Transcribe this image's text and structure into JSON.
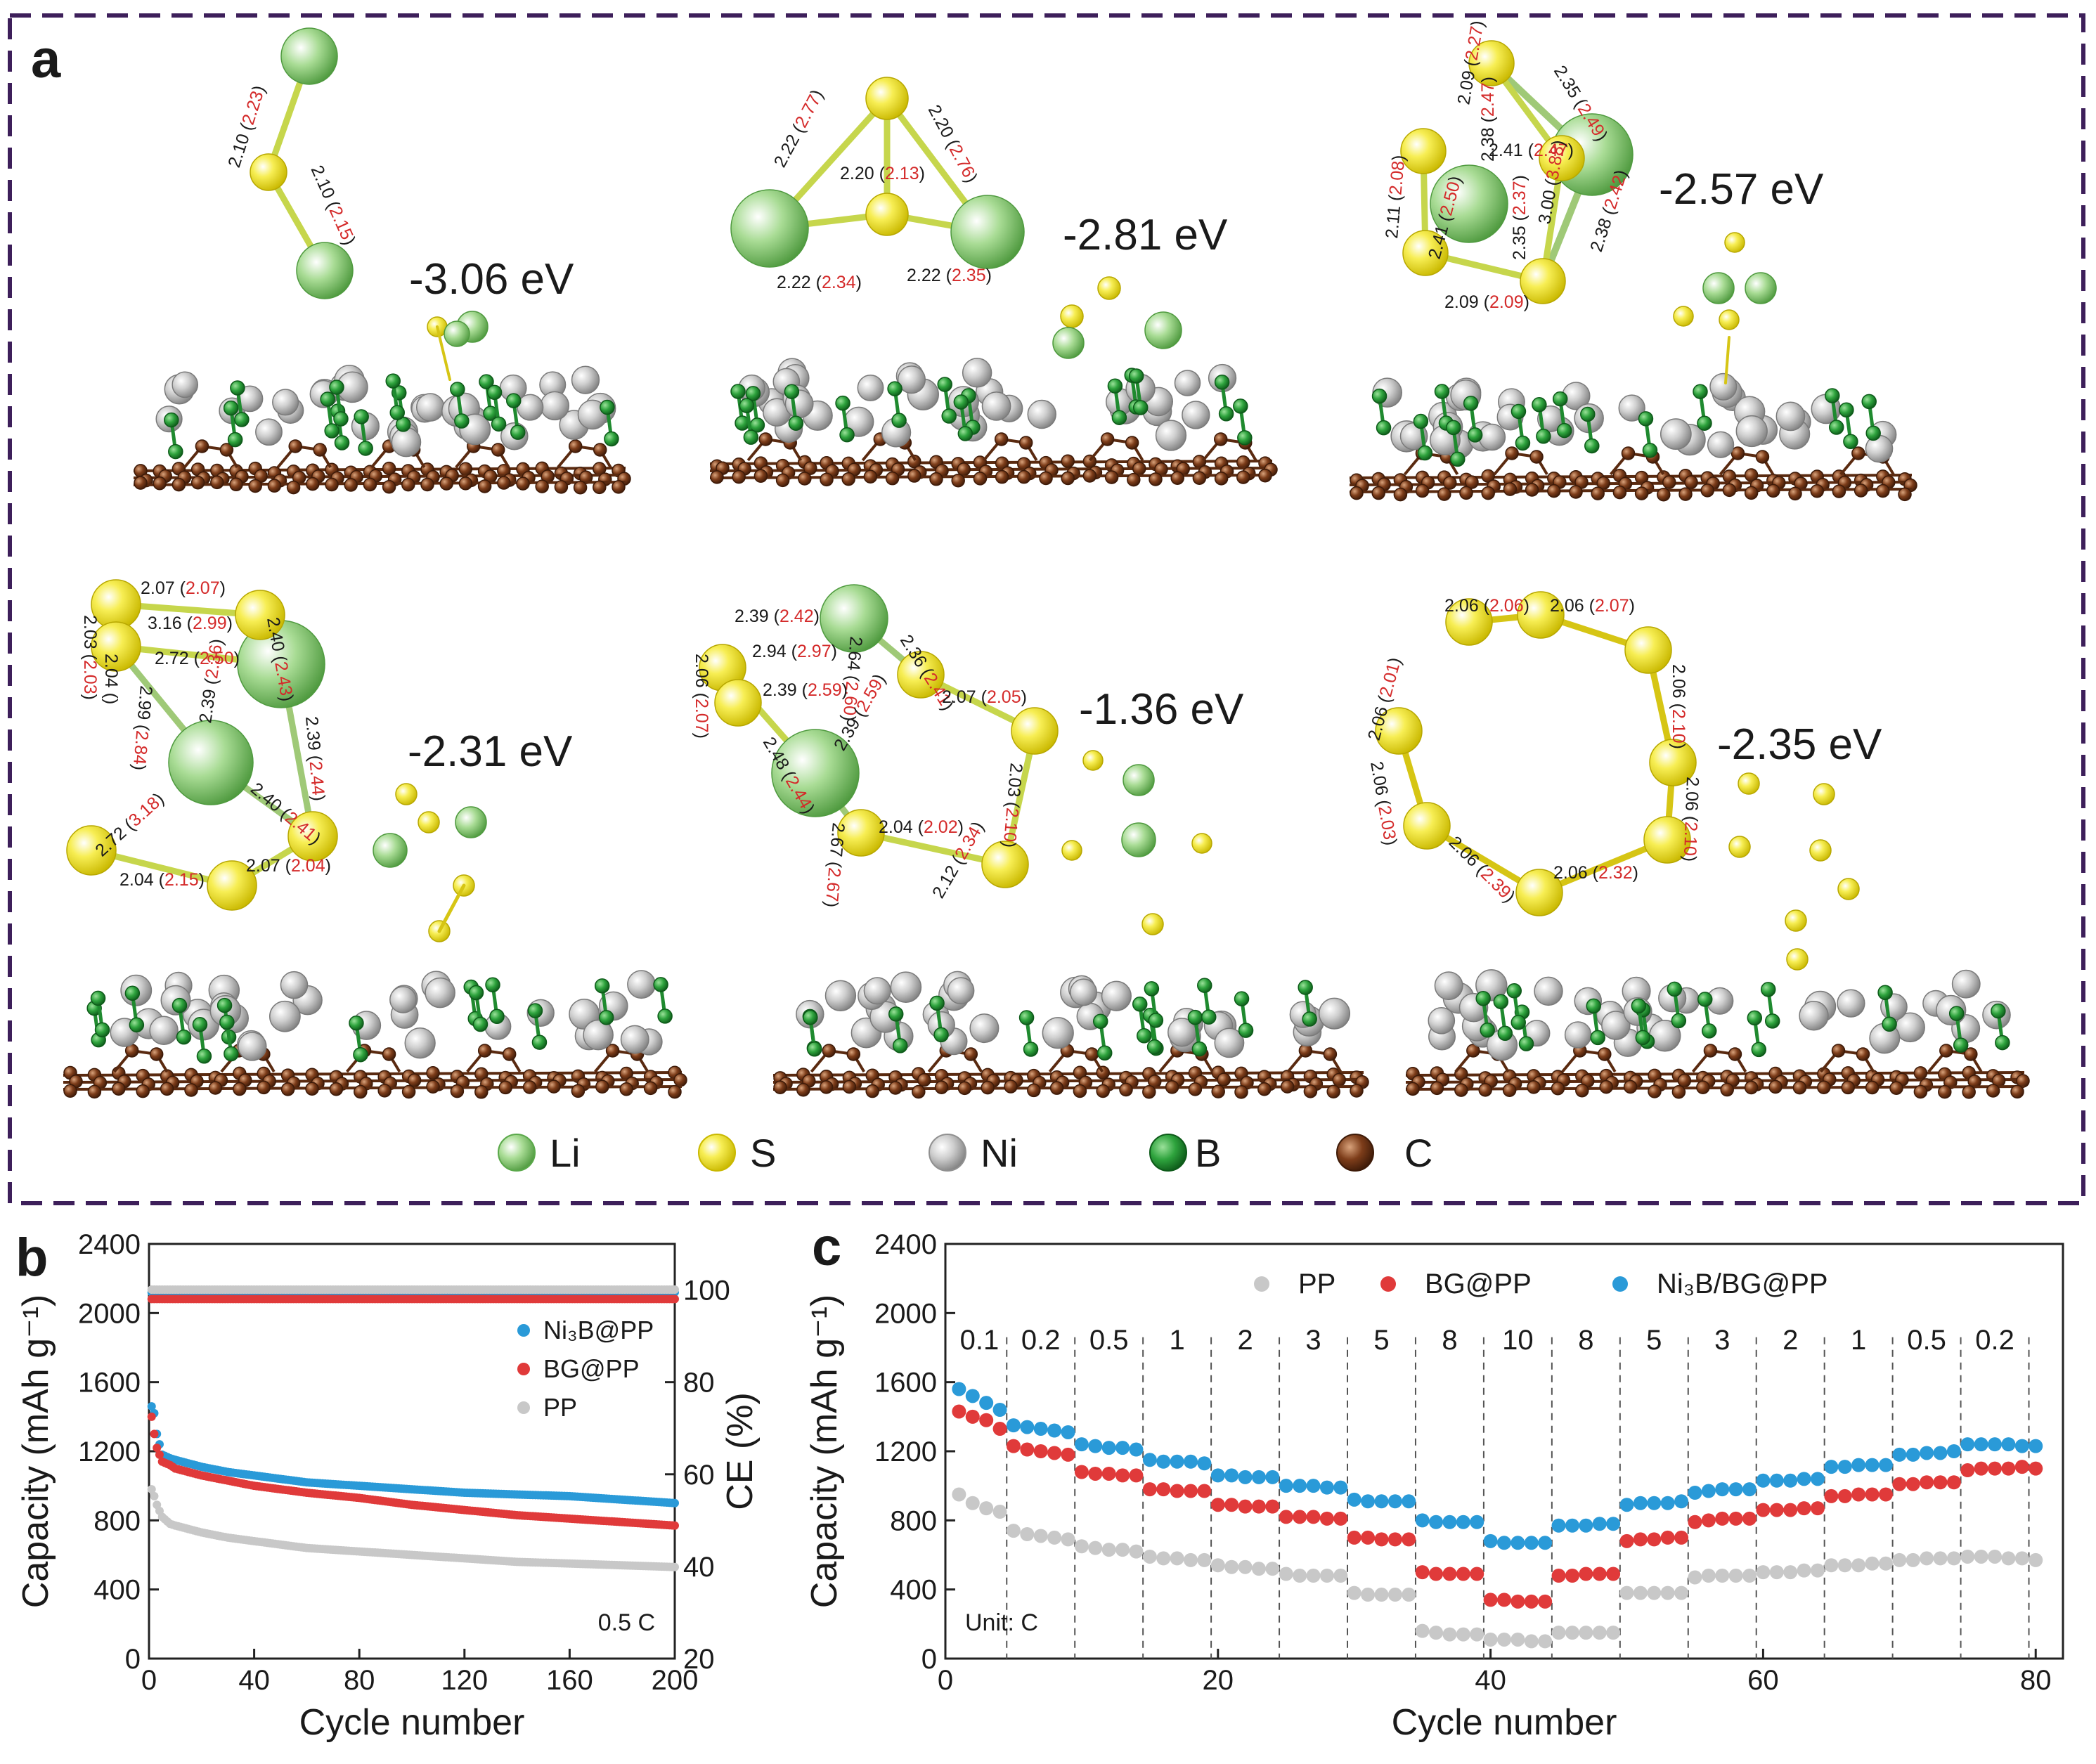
{
  "colors": {
    "frame": "#3d1f5a",
    "li": "#7cc36a",
    "s": "#f2e21e",
    "ni": "#b9b9b9",
    "b": "#1f8a2f",
    "c": "#6b3417",
    "bond_red": "#d42a2a",
    "ni3b_bg_pp": "#2a9ad8",
    "bg_pp": "#e03a3a",
    "pp": "#c8c8c8"
  },
  "panel_a": {
    "label": "a",
    "structures": [
      {
        "energy": "-3.06 eV",
        "bonds": [
          {
            "v": "2.10",
            "p": "2.23"
          },
          {
            "v": "2.10",
            "p": "2.15"
          }
        ]
      },
      {
        "energy": "-2.81 eV",
        "bonds": [
          {
            "v": "2.22",
            "p": "2.77"
          },
          {
            "v": "2.20",
            "p": "2.76"
          },
          {
            "v": "2.20",
            "p": "2.13"
          },
          {
            "v": "2.22",
            "p": "2.34"
          },
          {
            "v": "2.22",
            "p": "2.35"
          }
        ]
      },
      {
        "energy": "-2.57 eV",
        "bonds": [
          {
            "v": "2.35",
            "p": "2.49"
          },
          {
            "v": "2.09",
            "p": "2.27"
          },
          {
            "v": "2.38",
            "p": "2.47"
          },
          {
            "v": "2.41",
            "p": "2.47"
          },
          {
            "v": "2.11",
            "p": "2.08"
          },
          {
            "v": "3.00",
            "p": "3.88"
          },
          {
            "v": "2.41",
            "p": "2.50"
          },
          {
            "v": "2.35",
            "p": "2.37"
          },
          {
            "v": "2.38",
            "p": "2.42"
          },
          {
            "v": "2.09",
            "p": "2.09"
          }
        ]
      },
      {
        "energy": "-2.31 eV",
        "bonds": [
          {
            "v": "2.07",
            "p": "2.07"
          },
          {
            "v": "2.03",
            "p": "2.03"
          },
          {
            "v": "3.16",
            "p": "2.99"
          },
          {
            "v": "2.40",
            "p": "2.43"
          },
          {
            "v": "2.04",
            "p": ""
          },
          {
            "v": "2.72",
            "p": "2.50"
          },
          {
            "v": "2.99",
            "p": "2.84"
          },
          {
            "v": "2.39",
            "p": "2.36"
          },
          {
            "v": "2.39",
            "p": "2.44"
          },
          {
            "v": "2.72",
            "p": "3.18"
          },
          {
            "v": "2.40",
            "p": "2.41"
          },
          {
            "v": "2.04",
            "p": "2.15"
          },
          {
            "v": "2.07",
            "p": "2.04"
          }
        ]
      },
      {
        "energy": "-1.36 eV",
        "bonds": [
          {
            "v": "2.39",
            "p": "2.42"
          },
          {
            "v": "2.06",
            "p": "2.07"
          },
          {
            "v": "2.94",
            "p": "2.97"
          },
          {
            "v": "2.64",
            "p": "2.60"
          },
          {
            "v": "2.36",
            "p": "2.41"
          },
          {
            "v": "2.39",
            "p": "2.59"
          },
          {
            "v": "2.48",
            "p": "2.44"
          },
          {
            "v": "2.39",
            "p": "2.59"
          },
          {
            "v": "2.07",
            "p": "2.05"
          },
          {
            "v": "2.03",
            "p": "2.10"
          },
          {
            "v": "2.67",
            "p": "2.67"
          },
          {
            "v": "2.04",
            "p": "2.02"
          },
          {
            "v": "2.12",
            "p": "2.34"
          }
        ]
      },
      {
        "energy": "-2.35 eV",
        "bonds": [
          {
            "v": "2.06",
            "p": "2.06"
          },
          {
            "v": "2.06",
            "p": "2.07"
          },
          {
            "v": "2.06",
            "p": "2.10"
          },
          {
            "v": "2.06",
            "p": "2.10"
          },
          {
            "v": "2.06",
            "p": "2.01"
          },
          {
            "v": "2.06",
            "p": "2.03"
          },
          {
            "v": "2.06",
            "p": "2.39"
          },
          {
            "v": "2.06",
            "p": "2.32"
          }
        ]
      }
    ],
    "legend": [
      {
        "element": "Li",
        "color": "#7cc36a"
      },
      {
        "element": "S",
        "color": "#f2e21e"
      },
      {
        "element": "Ni",
        "color": "#b9b9b9"
      },
      {
        "element": "B",
        "color": "#1f8a2f"
      },
      {
        "element": "C",
        "color": "#6b3417"
      }
    ]
  },
  "chart_data": [
    {
      "panel": "b",
      "type": "scatter",
      "xlabel": "Cycle number",
      "ylabel": "Capacity (mAh g⁻¹)",
      "y2label": "CE (%)",
      "xlim": [
        0,
        200
      ],
      "ylim": [
        0,
        2400
      ],
      "y2lim": [
        20,
        110
      ],
      "xticks": [
        0,
        40,
        80,
        120,
        160,
        200
      ],
      "yticks": [
        0,
        400,
        800,
        1200,
        1600,
        2000,
        2400
      ],
      "y2ticks": [
        20,
        40,
        60,
        80,
        100
      ],
      "annotation": "0.5 C",
      "legend_position": "right",
      "series": [
        {
          "name": "Ni₃B@PP",
          "color": "#2a9ad8",
          "x": [
            1,
            2,
            3,
            5,
            8,
            10,
            15,
            20,
            30,
            40,
            60,
            80,
            100,
            120,
            140,
            160,
            180,
            200
          ],
          "capacity": [
            1460,
            1420,
            1300,
            1180,
            1160,
            1150,
            1130,
            1110,
            1080,
            1060,
            1020,
            1000,
            980,
            960,
            950,
            940,
            920,
            900
          ],
          "ce_level": 99.5
        },
        {
          "name": "BG@PP",
          "color": "#e03a3a",
          "x": [
            1,
            2,
            3,
            5,
            8,
            10,
            15,
            20,
            30,
            40,
            60,
            80,
            100,
            120,
            140,
            160,
            180,
            200
          ],
          "capacity": [
            1400,
            1300,
            1220,
            1140,
            1120,
            1100,
            1080,
            1060,
            1030,
            1000,
            960,
            930,
            890,
            860,
            830,
            810,
            790,
            770
          ],
          "ce_level": 98.5
        },
        {
          "name": "PP",
          "color": "#c8c8c8",
          "x": [
            1,
            2,
            3,
            5,
            8,
            10,
            15,
            20,
            30,
            40,
            60,
            80,
            100,
            120,
            140,
            160,
            180,
            200
          ],
          "capacity": [
            980,
            940,
            890,
            820,
            780,
            770,
            750,
            730,
            700,
            680,
            640,
            620,
            600,
            580,
            560,
            550,
            540,
            530
          ],
          "ce_level": 101
        }
      ]
    },
    {
      "panel": "c",
      "type": "scatter",
      "xlabel": "Cycle number",
      "ylabel": "Capacity (mAh g⁻¹)",
      "xlim": [
        0,
        82
      ],
      "ylim": [
        0,
        2400
      ],
      "xticks": [
        0,
        20,
        40,
        60,
        80
      ],
      "yticks": [
        0,
        400,
        800,
        1200,
        1600,
        2000,
        2400
      ],
      "annotation": "Unit: C",
      "legend_position": "top",
      "rates": [
        "0.1",
        "0.2",
        "0.5",
        "1",
        "2",
        "3",
        "5",
        "8",
        "10",
        "8",
        "5",
        "3",
        "2",
        "1",
        "0.5",
        "0.2"
      ],
      "rate_boundaries": [
        4.5,
        9.5,
        14.5,
        19.5,
        24.5,
        29.5,
        34.5,
        39.5,
        44.5,
        49.5,
        54.5,
        59.5,
        64.5,
        69.5,
        74.5,
        79.5
      ],
      "series": [
        {
          "name": "PP",
          "color": "#c8c8c8",
          "x": [
            1,
            2,
            3,
            4,
            5,
            6,
            7,
            8,
            9,
            10,
            11,
            12,
            13,
            14,
            15,
            16,
            17,
            18,
            19,
            20,
            21,
            22,
            23,
            24,
            25,
            26,
            27,
            28,
            29,
            30,
            31,
            32,
            33,
            34,
            35,
            36,
            37,
            38,
            39,
            40,
            41,
            42,
            43,
            44,
            45,
            46,
            47,
            48,
            49,
            50,
            51,
            52,
            53,
            54,
            55,
            56,
            57,
            58,
            59,
            60,
            61,
            62,
            63,
            64,
            65,
            66,
            67,
            68,
            69,
            70,
            71,
            72,
            73,
            74,
            75,
            76,
            77,
            78,
            79,
            80
          ],
          "values": [
            950,
            900,
            870,
            850,
            740,
            720,
            710,
            700,
            690,
            650,
            640,
            630,
            630,
            620,
            590,
            580,
            580,
            570,
            570,
            540,
            530,
            530,
            520,
            520,
            490,
            480,
            480,
            480,
            480,
            380,
            370,
            370,
            370,
            370,
            160,
            150,
            140,
            140,
            140,
            110,
            110,
            110,
            100,
            100,
            150,
            150,
            150,
            150,
            150,
            380,
            380,
            380,
            380,
            380,
            470,
            480,
            480,
            480,
            480,
            500,
            500,
            500,
            510,
            510,
            540,
            540,
            540,
            550,
            550,
            570,
            570,
            580,
            580,
            580,
            590,
            590,
            590,
            580,
            580,
            570
          ]
        },
        {
          "name": "BG@PP",
          "color": "#e03a3a",
          "x": [
            1,
            2,
            3,
            4,
            5,
            6,
            7,
            8,
            9,
            10,
            11,
            12,
            13,
            14,
            15,
            16,
            17,
            18,
            19,
            20,
            21,
            22,
            23,
            24,
            25,
            26,
            27,
            28,
            29,
            30,
            31,
            32,
            33,
            34,
            35,
            36,
            37,
            38,
            39,
            40,
            41,
            42,
            43,
            44,
            45,
            46,
            47,
            48,
            49,
            50,
            51,
            52,
            53,
            54,
            55,
            56,
            57,
            58,
            59,
            60,
            61,
            62,
            63,
            64,
            65,
            66,
            67,
            68,
            69,
            70,
            71,
            72,
            73,
            74,
            75,
            76,
            77,
            78,
            79,
            80
          ],
          "values": [
            1430,
            1400,
            1380,
            1330,
            1230,
            1210,
            1200,
            1190,
            1180,
            1080,
            1070,
            1070,
            1060,
            1060,
            980,
            980,
            970,
            970,
            970,
            890,
            890,
            880,
            880,
            880,
            820,
            820,
            820,
            810,
            810,
            700,
            700,
            690,
            690,
            690,
            500,
            490,
            490,
            490,
            490,
            340,
            340,
            330,
            330,
            330,
            480,
            480,
            490,
            490,
            490,
            680,
            690,
            690,
            700,
            700,
            790,
            800,
            810,
            810,
            810,
            860,
            860,
            860,
            870,
            870,
            940,
            940,
            950,
            950,
            950,
            1010,
            1010,
            1020,
            1020,
            1020,
            1090,
            1100,
            1100,
            1100,
            1110,
            1100
          ]
        },
        {
          "name": "Ni₃B/BG@PP",
          "color": "#2a9ad8",
          "x": [
            1,
            2,
            3,
            4,
            5,
            6,
            7,
            8,
            9,
            10,
            11,
            12,
            13,
            14,
            15,
            16,
            17,
            18,
            19,
            20,
            21,
            22,
            23,
            24,
            25,
            26,
            27,
            28,
            29,
            30,
            31,
            32,
            33,
            34,
            35,
            36,
            37,
            38,
            39,
            40,
            41,
            42,
            43,
            44,
            45,
            46,
            47,
            48,
            49,
            50,
            51,
            52,
            53,
            54,
            55,
            56,
            57,
            58,
            59,
            60,
            61,
            62,
            63,
            64,
            65,
            66,
            67,
            68,
            69,
            70,
            71,
            72,
            73,
            74,
            75,
            76,
            77,
            78,
            79,
            80
          ],
          "values": [
            1560,
            1520,
            1480,
            1440,
            1350,
            1340,
            1330,
            1320,
            1310,
            1240,
            1230,
            1220,
            1220,
            1210,
            1150,
            1140,
            1140,
            1140,
            1130,
            1060,
            1060,
            1050,
            1050,
            1050,
            1000,
            1000,
            1000,
            990,
            990,
            920,
            910,
            910,
            910,
            910,
            800,
            790,
            790,
            790,
            790,
            680,
            670,
            670,
            670,
            670,
            770,
            770,
            770,
            780,
            780,
            890,
            900,
            900,
            900,
            910,
            960,
            970,
            980,
            980,
            980,
            1030,
            1030,
            1030,
            1040,
            1040,
            1110,
            1110,
            1120,
            1120,
            1120,
            1180,
            1180,
            1190,
            1190,
            1200,
            1240,
            1240,
            1240,
            1240,
            1230,
            1230
          ]
        }
      ]
    }
  ],
  "panel_labels": {
    "b": "b",
    "c": "c"
  }
}
